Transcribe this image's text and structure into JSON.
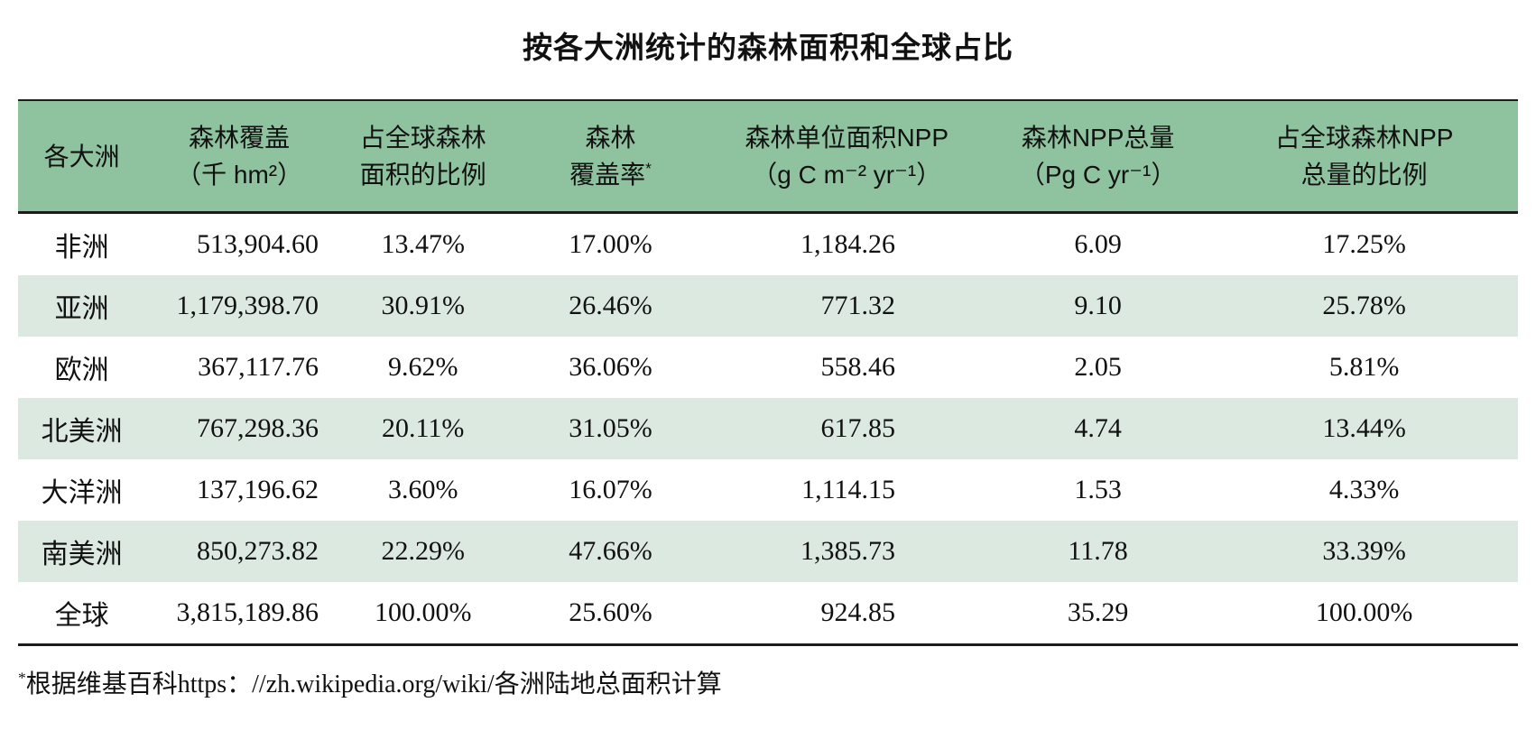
{
  "colors": {
    "header_bg": "#8fc3a0",
    "stripe_bg": "#dce9e0",
    "rule": "#1c1c1c",
    "text": "#111111"
  },
  "chart_data": {
    "type": "table",
    "title": "按各大洲统计的森林面积和全球占比",
    "columns": [
      {
        "line1": "各大洲",
        "line2": ""
      },
      {
        "line1": "森林覆盖",
        "line2": "（千 hm²）"
      },
      {
        "line1": "占全球森林",
        "line2": "面积的比例"
      },
      {
        "line1": "森林",
        "line2": "覆盖率",
        "sup": "*"
      },
      {
        "line1": "森林单位面积NPP",
        "line2": "（g C m⁻² yr⁻¹）"
      },
      {
        "line1": "森林NPP总量",
        "line2": "（Pg C yr⁻¹）"
      },
      {
        "line1": "占全球森林NPP",
        "line2": "总量的比例"
      }
    ],
    "rows": [
      [
        "非洲",
        "513,904.60",
        "13.47%",
        "17.00%",
        "1,184.26",
        "6.09",
        "17.25%"
      ],
      [
        "亚洲",
        "1,179,398.70",
        "30.91%",
        "26.46%",
        "771.32",
        "9.10",
        "25.78%"
      ],
      [
        "欧洲",
        "367,117.76",
        "9.62%",
        "36.06%",
        "558.46",
        "2.05",
        "5.81%"
      ],
      [
        "北美洲",
        "767,298.36",
        "20.11%",
        "31.05%",
        "617.85",
        "4.74",
        "13.44%"
      ],
      [
        "大洋洲",
        "137,196.62",
        "3.60%",
        "16.07%",
        "1,114.15",
        "1.53",
        "4.33%"
      ],
      [
        "南美洲",
        "850,273.82",
        "22.29%",
        "47.66%",
        "1,385.73",
        "11.78",
        "33.39%"
      ],
      [
        "全球",
        "3,815,189.86",
        "100.00%",
        "25.60%",
        "924.85",
        "35.29",
        "100.00%"
      ]
    ],
    "footnote_sup": "*",
    "footnote_text": "根据维基百科https：//zh.wikipedia.org/wiki/各洲陆地总面积计算"
  }
}
